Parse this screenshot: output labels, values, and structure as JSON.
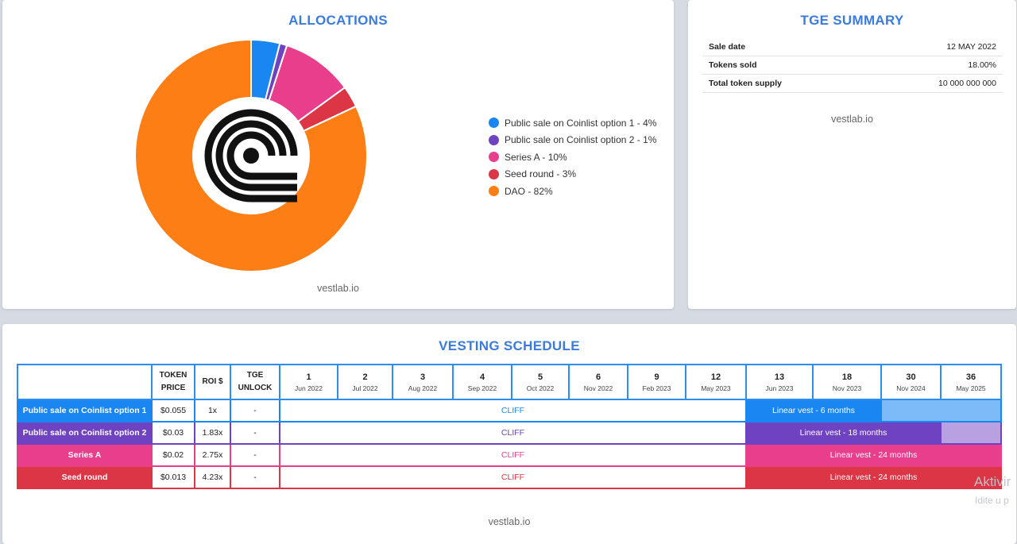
{
  "allocations": {
    "title": "ALLOCATIONS",
    "watermark": "vestlab.io",
    "chart_data": {
      "type": "pie",
      "donut": true,
      "title": "ALLOCATIONS",
      "slices": [
        {
          "label": "Public sale on Coinlist option 1 - 4%",
          "value": 4,
          "color": "#1a86f2"
        },
        {
          "label": "Public sale on Coinlist option 2 - 1%",
          "value": 1,
          "color": "#6f42c1"
        },
        {
          "label": "Series A - 10%",
          "value": 10,
          "color": "#e83e8c"
        },
        {
          "label": "Seed round - 3%",
          "value": 3,
          "color": "#dc3545"
        },
        {
          "label": "DAO - 82%",
          "value": 82,
          "color": "#fd7e14"
        }
      ],
      "legend_position": "right"
    }
  },
  "tge": {
    "title": "TGE SUMMARY",
    "watermark": "vestlab.io",
    "rows": [
      {
        "key": "Sale date",
        "value": "12 MAY 2022"
      },
      {
        "key": "Tokens sold",
        "value": "18.00%"
      },
      {
        "key": "Total token supply",
        "value": "10 000 000 000"
      }
    ]
  },
  "vesting": {
    "title": "VESTING SCHEDULE",
    "watermark": "vestlab.io",
    "headers": {
      "price_line1": "TOKEN",
      "price_line2": "PRICE",
      "roi": "ROI $",
      "tge_line1": "TGE",
      "tge_line2": "UNLOCK"
    },
    "months": [
      {
        "num": "1",
        "date": "Jun 2022"
      },
      {
        "num": "2",
        "date": "Jul 2022"
      },
      {
        "num": "3",
        "date": "Aug 2022"
      },
      {
        "num": "4",
        "date": "Sep 2022"
      },
      {
        "num": "5",
        "date": "Oct 2022"
      },
      {
        "num": "6",
        "date": "Nov 2022"
      },
      {
        "num": "9",
        "date": "Feb 2023"
      },
      {
        "num": "12",
        "date": "May 2023"
      },
      {
        "num": "13",
        "date": "Jun 2023"
      },
      {
        "num": "18",
        "date": "Nov 2023"
      },
      {
        "num": "30",
        "date": "Nov 2024"
      },
      {
        "num": "36",
        "date": "May 2025"
      }
    ],
    "rows": [
      {
        "name": "Public sale on Coinlist option 1",
        "price": "$0.055",
        "roi": "1x",
        "tge": "-",
        "cliff": "CLIFF",
        "vest": "Linear vest - 6 months",
        "color": "#1a86f2",
        "light": "#7dbaf8",
        "cliff_color": "#1a86f2",
        "vest_months": 2
      },
      {
        "name": "Public sale on Coinlist option 2",
        "price": "$0.03",
        "roi": "1.83x",
        "tge": "-",
        "cliff": "CLIFF",
        "vest": "Linear vest - 18 months",
        "color": "#6f42c1",
        "light": "#b9a0e0",
        "cliff_color": "#6f42c1",
        "vest_months": 3
      },
      {
        "name": "Series A",
        "price": "$0.02",
        "roi": "2.75x",
        "tge": "-",
        "cliff": "CLIFF",
        "vest": "Linear vest - 24 months",
        "color": "#e83e8c",
        "light": "#e83e8c",
        "cliff_color": "#e83e8c",
        "vest_months": 4
      },
      {
        "name": "Seed round",
        "price": "$0.013",
        "roi": "4.23x",
        "tge": "-",
        "cliff": "CLIFF",
        "vest": "Linear vest - 24 months",
        "color": "#dc3545",
        "light": "#dc3545",
        "cliff_color": "#dc3545",
        "vest_months": 4
      }
    ]
  },
  "overlay": {
    "activation_line1": "Aktivir",
    "activation_line2": "Idite u p"
  }
}
